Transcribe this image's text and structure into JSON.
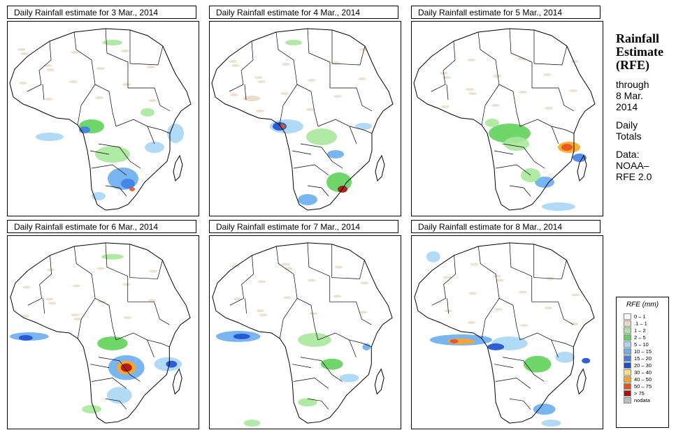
{
  "panels": [
    {
      "title": "Daily Rainfall estimate for  3 Mar., 2014",
      "date": "3 Mar., 2014"
    },
    {
      "title": "Daily Rainfall estimate for  4 Mar., 2014",
      "date": "4 Mar., 2014"
    },
    {
      "title": "Daily Rainfall estimate for  5 Mar., 2014",
      "date": "5 Mar., 2014"
    },
    {
      "title": "Daily Rainfall estimate for  6 Mar., 2014",
      "date": "6 Mar., 2014"
    },
    {
      "title": "Daily Rainfall estimate for  7 Mar., 2014",
      "date": "7 Mar., 2014"
    },
    {
      "title": "Daily Rainfall estimate for  8 Mar., 2014",
      "date": "8 Mar., 2014"
    }
  ],
  "sidebar": {
    "title_line1": "Rainfall",
    "title_line2": "Estimate",
    "title_line3": "(RFE)",
    "through_label": "through",
    "through_date_line1": "8 Mar.",
    "through_date_line2": "2014",
    "daily_line1": "Daily",
    "daily_line2": "Totals",
    "data_label": "Data:",
    "data_source_line1": "NOAA–",
    "data_source_line2": "RFE 2.0"
  },
  "legend": {
    "title": "RFE (mm)",
    "items": [
      {
        "label": "0 – 1",
        "color": "#ffffff"
      },
      {
        "label": ".1 – 1",
        "color": "#e8d9c4"
      },
      {
        "label": "1 – 2",
        "color": "#a8e89a"
      },
      {
        "label": "2 – 5",
        "color": "#5fd35a"
      },
      {
        "label": "5 – 10",
        "color": "#a9d6f5"
      },
      {
        "label": "10 – 15",
        "color": "#6aaef0"
      },
      {
        "label": "15 – 20",
        "color": "#3f7fe6"
      },
      {
        "label": "20 – 30",
        "color": "#1d4fd0"
      },
      {
        "label": "30 – 40",
        "color": "#ffe07a"
      },
      {
        "label": "40 – 50",
        "color": "#ffa51f"
      },
      {
        "label": "50 – 75",
        "color": "#e8501e"
      },
      {
        "label": "> 75",
        "color": "#b01010"
      },
      {
        "label": "nodata",
        "color": "#bdbdbd"
      }
    ]
  },
  "map_colors": {
    "border": "#000000",
    "green_light": "#a8e89a",
    "green": "#5fd35a",
    "blue_light": "#a9d6f5",
    "blue": "#6aaef0",
    "blue_dark": "#3f7fe6",
    "navy": "#1d4fd0",
    "orange": "#ffa51f",
    "red": "#e8501e",
    "darkred": "#b01010",
    "tan": "#e8d9c4"
  }
}
